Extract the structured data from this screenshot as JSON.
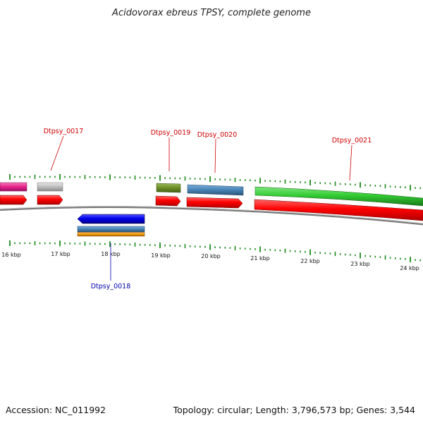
{
  "title": "Acidovorax ebreus TPSY, complete genome",
  "footer": {
    "accession": "Accession: NC_011992",
    "summary": "Topology: circular; Length: 3,796,573 bp; Genes: 3,544"
  },
  "scale_labels": [
    "16 kbp",
    "17 kbp",
    "18 kbp",
    "19 kbp",
    "20 kbp",
    "21 kbp",
    "22 kbp",
    "23 kbp",
    "24 kbp"
  ],
  "gene_labels": [
    {
      "id": "g17",
      "text": "Dtpsy_0017",
      "color": "#cc0000"
    },
    {
      "id": "g18",
      "text": "Dtpsy_0018",
      "color": "#0000aa"
    },
    {
      "id": "g19",
      "text": "Dtpsy_0019",
      "color": "#cc0000"
    },
    {
      "id": "g20",
      "text": "Dtpsy_0020",
      "color": "#cc0000"
    },
    {
      "id": "g21",
      "text": "Dtpsy_0021",
      "color": "#cc0000"
    }
  ],
  "colors": {
    "forward_cds": "#ff0000",
    "reverse_cds": "#0000ee",
    "magenta": "#e8228c",
    "grey": "#bdbdbd",
    "olive": "#6b8e23",
    "steelblue": "#4682b4",
    "green": "#33cc33",
    "orange": "#f0960a",
    "tick": "#1a8a1a",
    "backbone": "#777777"
  }
}
